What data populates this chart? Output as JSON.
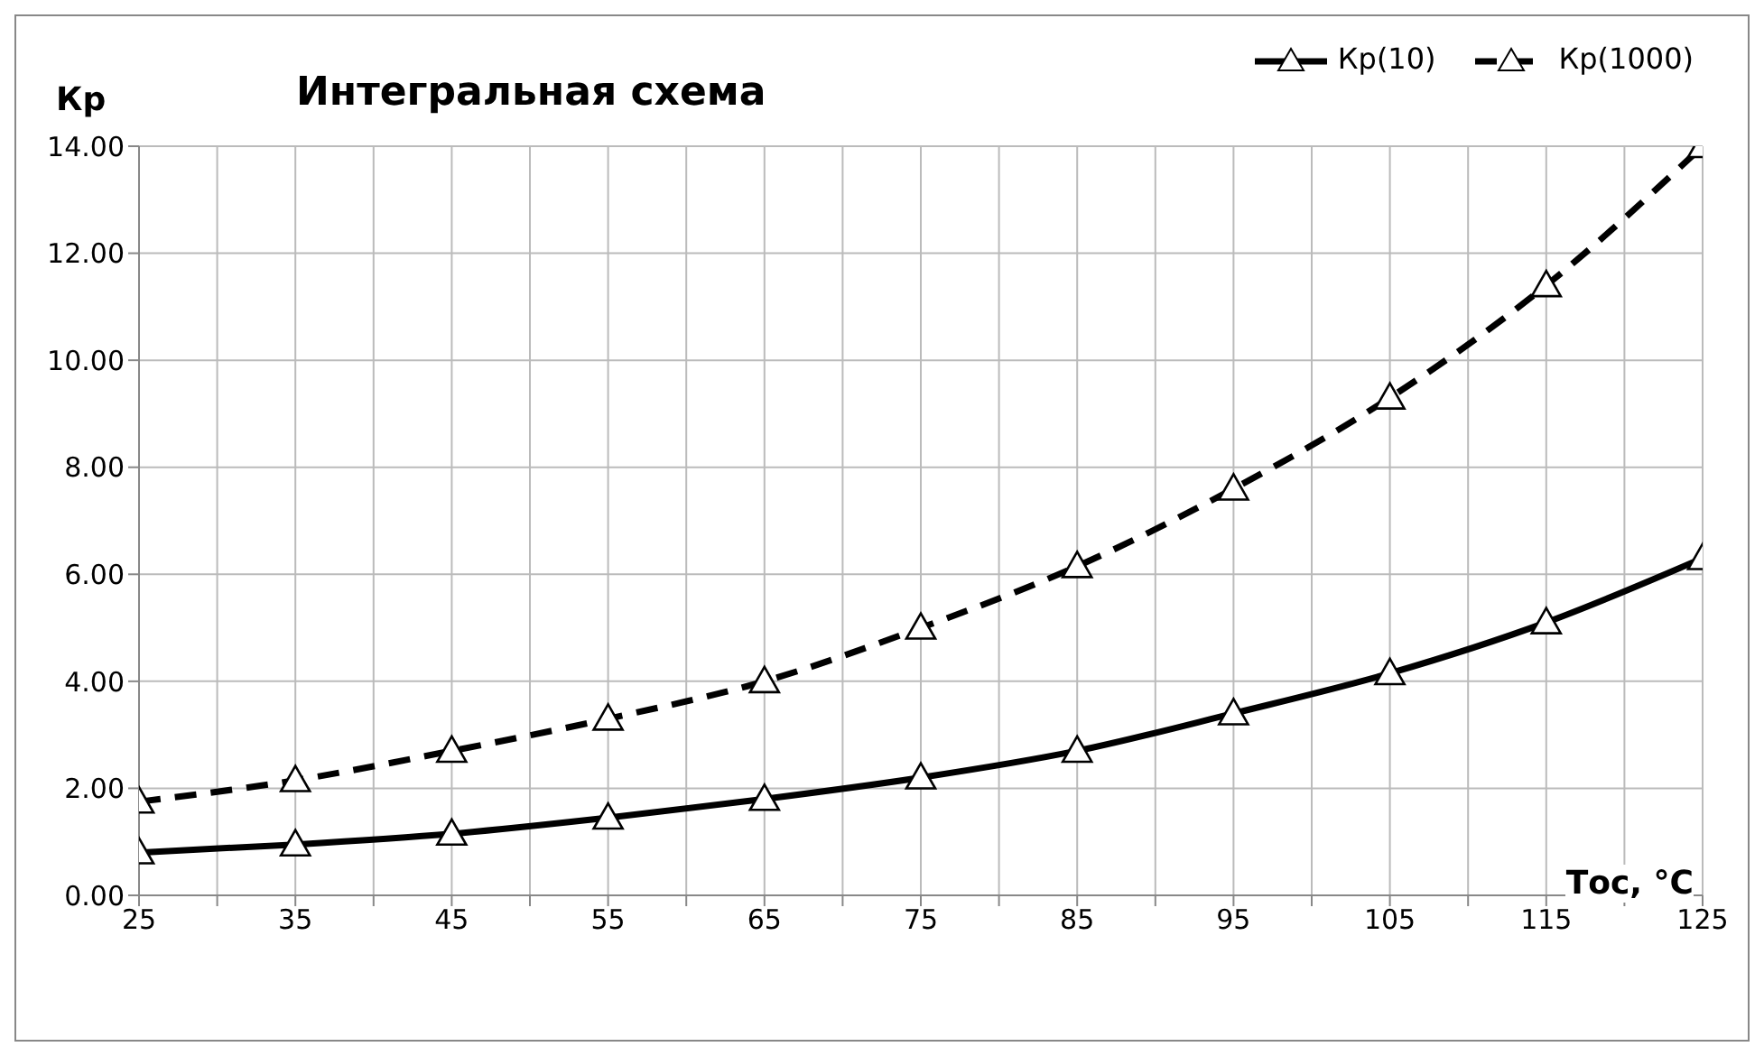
{
  "chart_data": {
    "type": "line",
    "title": "Интегральная схема",
    "xlabel": "Тос, °С",
    "ylabel": "Кр",
    "x": [
      25,
      35,
      45,
      55,
      65,
      75,
      85,
      95,
      105,
      115,
      125
    ],
    "series": [
      {
        "name": "Кр(10)",
        "color": "#000000",
        "line_style": "solid",
        "values": [
          0.8,
          0.95,
          1.15,
          1.45,
          1.8,
          2.2,
          2.7,
          3.4,
          4.15,
          5.1,
          6.3
        ]
      },
      {
        "name": "Кр(1000)",
        "color": "#000000",
        "line_style": "dashed",
        "values": [
          1.75,
          2.15,
          2.7,
          3.3,
          4.0,
          5.0,
          6.15,
          7.6,
          9.3,
          11.4,
          14.0
        ]
      }
    ],
    "xlim": [
      25,
      125
    ],
    "xticks": [
      25,
      {
        "value": 30,
        "label": null
      },
      35,
      {
        "value": 40,
        "label": null
      },
      45,
      {
        "value": 50,
        "label": null
      },
      55,
      {
        "value": 60,
        "label": null
      },
      65,
      {
        "value": 70,
        "label": null
      },
      75,
      {
        "value": 80,
        "label": null
      },
      85,
      {
        "value": 90,
        "label": null
      },
      95,
      {
        "value": 100,
        "label": null
      },
      105,
      {
        "value": 110,
        "label": null
      },
      115,
      {
        "value": 120,
        "label": null
      },
      125
    ],
    "ylim": [
      0,
      14
    ],
    "yticks": [
      {
        "value": 0,
        "label": "0.00"
      },
      {
        "value": 2,
        "label": "2.00"
      },
      {
        "value": 4,
        "label": "4.00"
      },
      {
        "value": 6,
        "label": "6.00"
      },
      {
        "value": 8,
        "label": "8.00"
      },
      {
        "value": 10,
        "label": "10.00"
      },
      {
        "value": 12,
        "label": "12.00"
      },
      {
        "value": 14,
        "label": "14.00"
      }
    ],
    "grid": true,
    "legend": "top right",
    "marker": "triangle"
  }
}
